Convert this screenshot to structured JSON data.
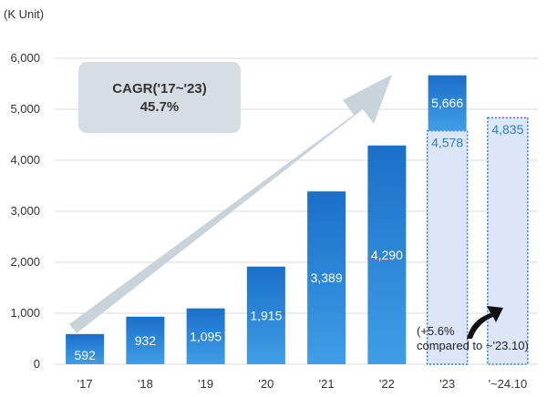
{
  "chart_data": {
    "type": "bar",
    "unit_label": "(K Unit)",
    "categories": [
      "'17",
      "'18",
      "'19",
      "'20",
      "'21",
      "'22",
      "'23",
      "'~24.10"
    ],
    "values": [
      592,
      932,
      1095,
      1915,
      3389,
      4290,
      5666,
      null
    ],
    "value_labels": [
      "592",
      "932",
      "1,095",
      "1,915",
      "3,389",
      "4,290",
      "5,666",
      ""
    ],
    "dashed_values": [
      null,
      null,
      null,
      null,
      null,
      null,
      4578,
      4835
    ],
    "dashed_labels": [
      "",
      "",
      "",
      "",
      "",
      "",
      "4,578",
      "4,835"
    ],
    "ylim": [
      0,
      6000
    ],
    "yticks": [
      0,
      1000,
      2000,
      3000,
      4000,
      5000,
      6000
    ],
    "ytick_labels": [
      "0",
      "1,000",
      "2,000",
      "3,000",
      "4,000",
      "5,000",
      "6,000"
    ],
    "grid": true,
    "annotation_box": {
      "line1": "CAGR('17~'23)",
      "line2": "45.7%"
    },
    "note": {
      "line1": "(+5.6%",
      "line2": "compared to ~'23.10)"
    },
    "colors": {
      "bar_top": "#1a6fc8",
      "bar_bottom": "#3f9ee6",
      "dashed_fill": "#dde6f6",
      "dashed_stroke": "#2a7fd0",
      "annotation_bg": "#d6dee3",
      "arrow": "#c8d3da",
      "grid": "#d9d9d9"
    }
  }
}
